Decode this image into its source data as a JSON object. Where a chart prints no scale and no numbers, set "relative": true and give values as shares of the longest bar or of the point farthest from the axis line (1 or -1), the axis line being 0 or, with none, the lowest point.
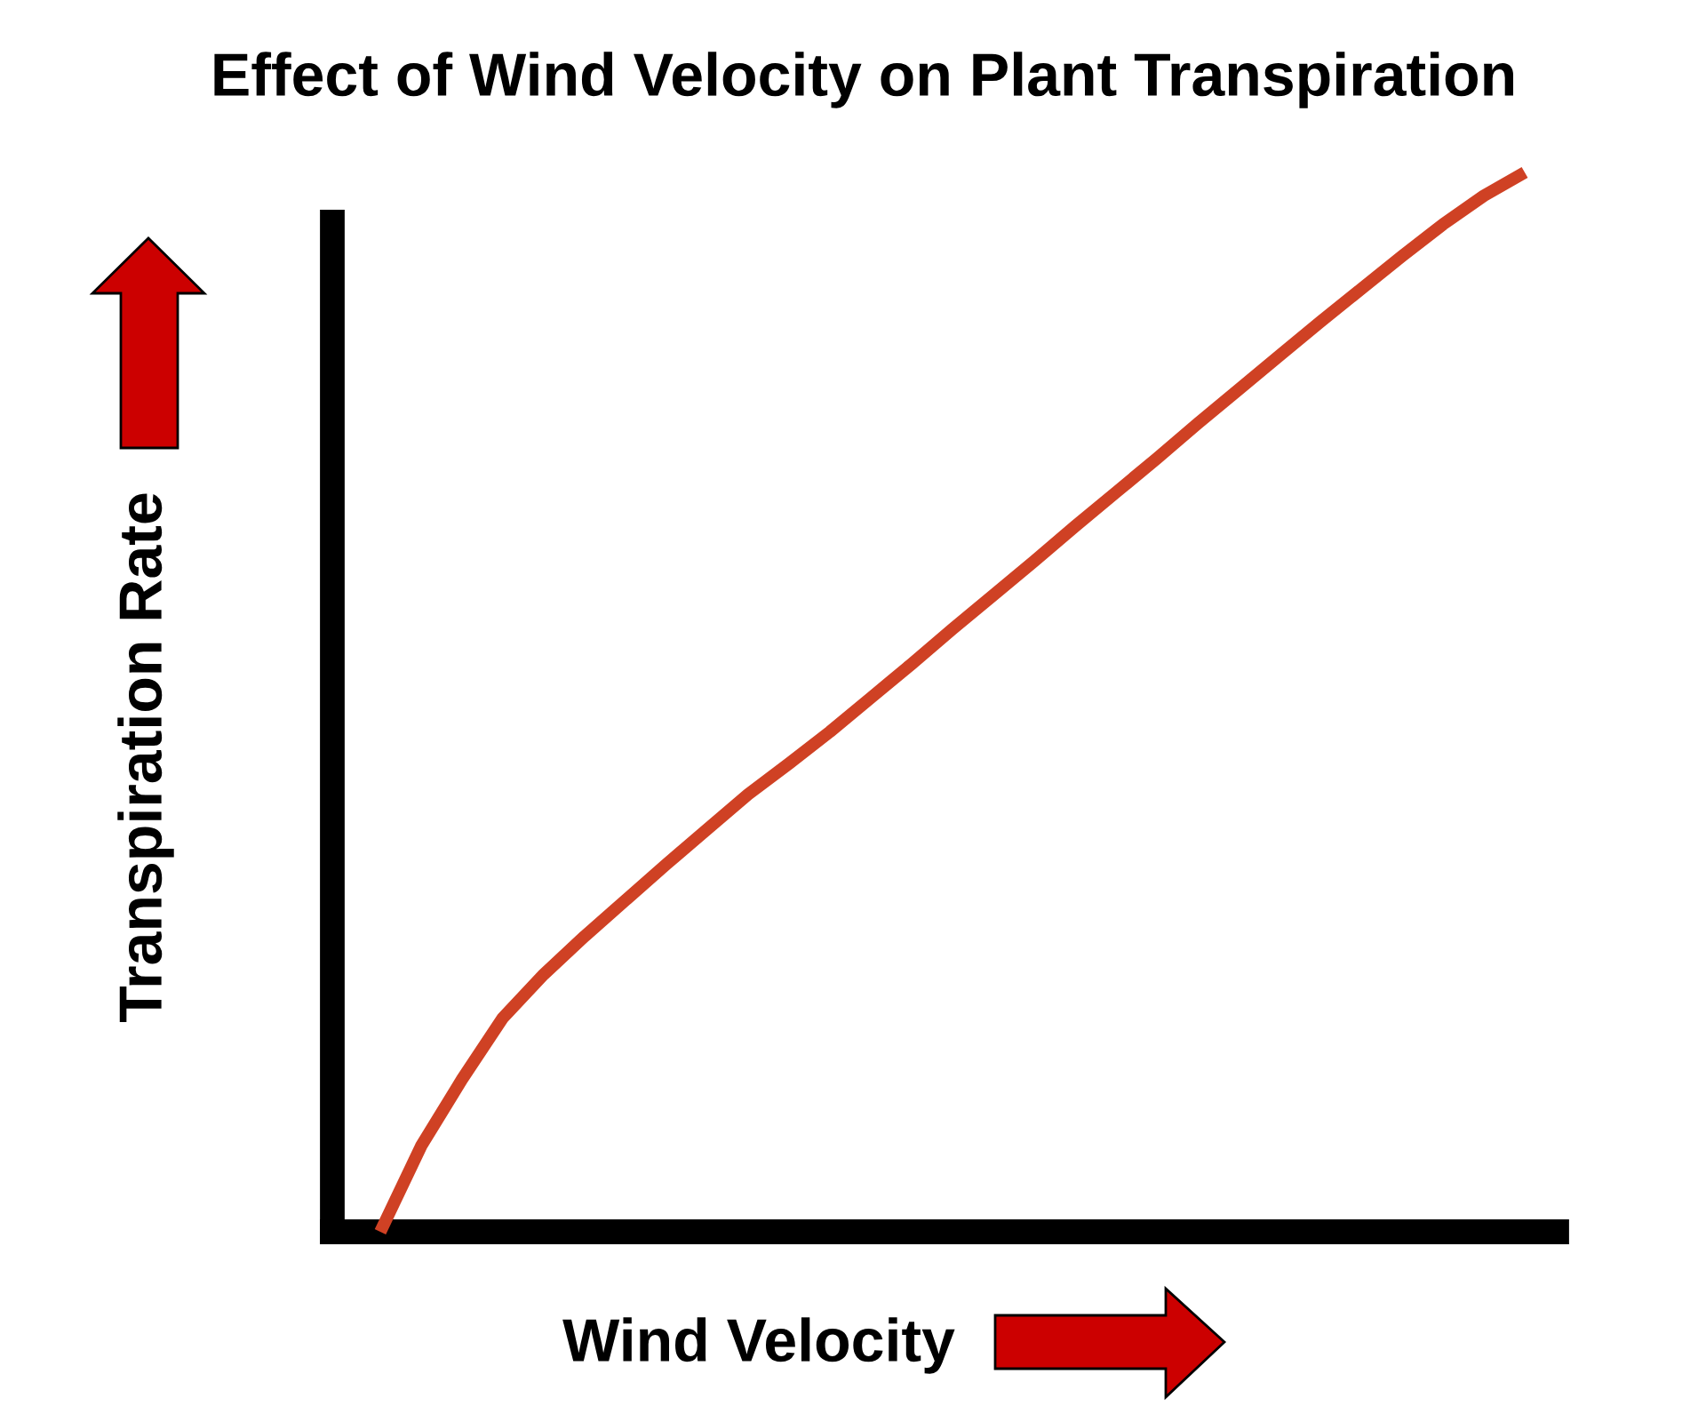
{
  "chart_data": {
    "type": "line",
    "title": "Effect of Wind Velocity on Plant Transpiration",
    "xlabel": "Wind Velocity",
    "ylabel": "Transpiration Rate",
    "relative": true,
    "categories": [
      null,
      null,
      null,
      null,
      null,
      null,
      null,
      null,
      null,
      null,
      null,
      null,
      null,
      null,
      null,
      null,
      null,
      null,
      null,
      null,
      null,
      null,
      null,
      null,
      null,
      null,
      null,
      null,
      null
    ],
    "series": [
      {
        "color": "#cf4124",
        "values": [
          0.0,
          0.081,
          0.144,
          0.202,
          0.243,
          0.279,
          0.313,
          0.347,
          0.38,
          0.413,
          0.442,
          0.472,
          0.504,
          0.536,
          0.569,
          0.601,
          0.633,
          0.666,
          0.698,
          0.73,
          0.763,
          0.795,
          0.827,
          0.859,
          0.89,
          0.921,
          0.951,
          0.978,
          1.0
        ]
      }
    ]
  }
}
